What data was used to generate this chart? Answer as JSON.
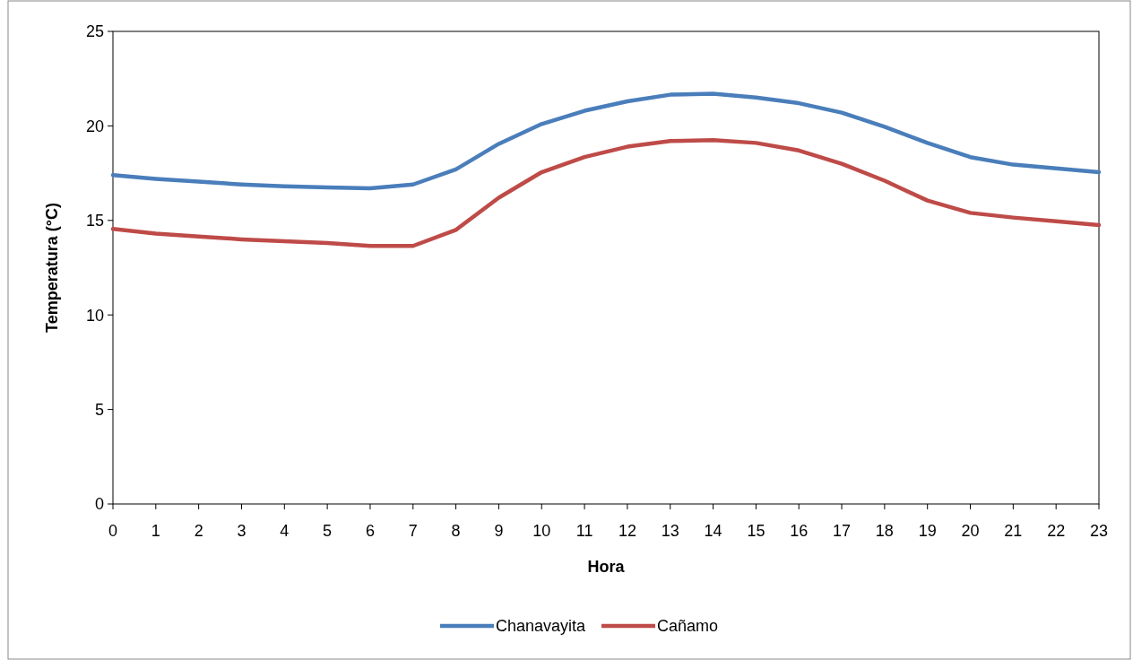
{
  "chart_data": {
    "type": "line",
    "xlabel": "Hora",
    "ylabel": "Temperatura (°C)",
    "x": [
      0,
      1,
      2,
      3,
      4,
      5,
      6,
      7,
      8,
      9,
      10,
      11,
      12,
      13,
      14,
      15,
      16,
      17,
      18,
      19,
      20,
      21,
      22,
      23
    ],
    "xlim": [
      0,
      23
    ],
    "xticks": [
      0,
      1,
      2,
      3,
      4,
      5,
      6,
      7,
      8,
      9,
      10,
      11,
      12,
      13,
      14,
      15,
      16,
      17,
      18,
      19,
      20,
      21,
      22,
      23
    ],
    "ylim": [
      0,
      25
    ],
    "yticks": [
      0,
      5,
      10,
      15,
      20,
      25
    ],
    "grid": false,
    "legend": "bottom",
    "marker": "none",
    "line_style": "solid",
    "series": [
      {
        "name": "Chanavayita",
        "color": "#4a7ebb",
        "values": [
          17.4,
          17.2,
          17.05,
          16.9,
          16.8,
          16.75,
          16.7,
          16.9,
          17.7,
          19.05,
          20.1,
          20.8,
          21.3,
          21.65,
          21.7,
          21.5,
          21.2,
          20.7,
          19.95,
          19.1,
          18.35,
          17.95,
          17.75,
          17.55
        ]
      },
      {
        "name": "Cañamo",
        "color": "#be4b48",
        "values": [
          14.55,
          14.3,
          14.15,
          14.0,
          13.9,
          13.8,
          13.65,
          13.65,
          14.5,
          16.2,
          17.55,
          18.35,
          18.9,
          19.2,
          19.25,
          19.1,
          18.7,
          18.0,
          17.1,
          16.05,
          15.4,
          15.15,
          14.95,
          14.75
        ]
      }
    ]
  }
}
